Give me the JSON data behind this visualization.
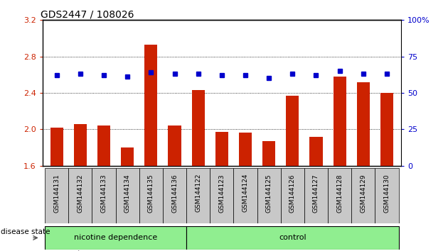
{
  "title": "GDS2447 / 108026",
  "categories": [
    "GSM144131",
    "GSM144132",
    "GSM144133",
    "GSM144134",
    "GSM144135",
    "GSM144136",
    "GSM144122",
    "GSM144123",
    "GSM144124",
    "GSM144125",
    "GSM144126",
    "GSM144127",
    "GSM144128",
    "GSM144129",
    "GSM144130"
  ],
  "group1_label": "nicotine dependence",
  "group2_label": "control",
  "group1_count": 6,
  "group2_count": 9,
  "counts": [
    2.02,
    2.06,
    2.04,
    1.8,
    2.93,
    2.04,
    2.43,
    1.97,
    1.96,
    1.87,
    2.37,
    1.92,
    2.58,
    2.52,
    2.4
  ],
  "percentiles": [
    62,
    63,
    62,
    61,
    64,
    63,
    63,
    62,
    62,
    60,
    63,
    62,
    65,
    63,
    63
  ],
  "ylim_left": [
    1.6,
    3.2
  ],
  "ylim_right": [
    0,
    100
  ],
  "yticks_left": [
    1.6,
    2.0,
    2.4,
    2.8,
    3.2
  ],
  "yticks_right": [
    0,
    25,
    50,
    75,
    100
  ],
  "bar_color": "#CC2200",
  "dot_color": "#0000CC",
  "tick_color_left": "#CC2200",
  "tick_color_right": "#0000CC",
  "grid_color": "#000000",
  "group_bg": "#90EE90",
  "label_bg": "#C8C8C8"
}
